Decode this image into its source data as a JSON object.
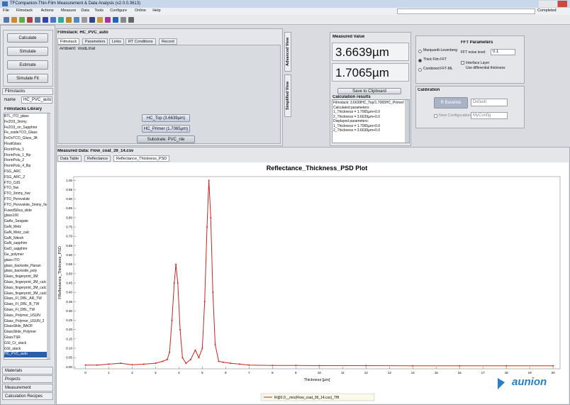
{
  "window": {
    "title": "TFCompanion-Thin-Film Measurement & Data Analysis (v2.0.0.3613)",
    "status": "Completed"
  },
  "menu": [
    "File",
    "Filmstack",
    "Actions",
    "Measure",
    "Data",
    "Tools",
    "Configure",
    "Online",
    "Help"
  ],
  "left": {
    "buttons": [
      "Calculate",
      "Simulate",
      "Estimate",
      "Simulate Fit"
    ],
    "tab": "Filmstacks",
    "name_label": "Name",
    "name_value": "HC_PVC_auto",
    "library_title": "Filmstacks Library",
    "library": [
      "BTL_ITO_glass",
      "Fe2O3_3mmy",
      "Fe2O3_on_Sapphire",
      "Fe_oxideTCO_Glass",
      "FeOxTCO_Glass_3ft",
      "FloatGlass",
      "FlorinPolu_1",
      "FlorinPolu_1_flip",
      "FlorinPolu_2",
      "FlorinPolu_4_flip",
      "FSG_ARC",
      "FSG_ARC_2",
      "FTO_CdS",
      "FTO_fsw",
      "FTO_3mmy_fsw",
      "FTO_Perovskite",
      "FTO_Perovskite_3mmy_fsw",
      "FusedSilica_slide",
      "glass100",
      "GaAs_Seagate",
      "GaN_Metz",
      "GaN_Metz_calc",
      "GaN_Nitesh",
      "GaN_sapphire",
      "GaO_sapphire",
      "Ge_polymer",
      "glass-ITO",
      "glass_backside_Hanan",
      "glass_backside_poly",
      "Glass_fingerprint_3M",
      "Glass_fingerprint_3M_calc",
      "Glass_fingerprint_3M_calc1",
      "Glass_fingerprint_3M_calc3",
      "Glass_FI_DBL_AR_TW",
      "Glass_FI_DBL_B_TW",
      "Glass_FI_DBL_TW",
      "Glass_Polymer_USUN",
      "Glass_Polymer_USUN_2",
      "GlassSlide_BAOF",
      "GlassSlide_Polymer",
      "GlassTSR",
      "GSI_Cr_stack",
      "GSI_stack",
      "HC_PVC_auto"
    ],
    "bottom_tabs": [
      "Materials",
      "Projects",
      "Measurement",
      "Calculation Recipes"
    ]
  },
  "filmstack": {
    "title": "Filmstack: HC_PVC_auto",
    "tabs": [
      "Filmstack",
      "Parameters",
      "Links",
      "RT Conditions",
      "Record"
    ],
    "ambient": "Ambient: VoidLmat",
    "layers": [
      "HC_Top (3.6639µm)",
      "HC_Primer (1.7065µm)",
      "Substrate: PVC_nle"
    ],
    "side_tabs": [
      "Advanced View",
      "Simplified View"
    ]
  },
  "measured": {
    "title": "Measured Value",
    "values": [
      "3.6639µm",
      "1.7065µm"
    ],
    "clipboard": "Save to Clipboard",
    "results_title": "Calculation results",
    "results": [
      "Filmstack: 3.6639HC_Top/1.7065HC_Primer/PVC_nle",
      "Calculated parameters:",
      "1_Thickness = 1.7065µm+0.0",
      "2_Thickness = 3.6639µm+0.0",
      "Displayed parameters:",
      "1_Thickness = 1.7065µm+0.0",
      "2_Thickness = 3.6639µm+0.0"
    ]
  },
  "fft": {
    "options": [
      "Marquardt-Levenberg",
      "Thick Film FFT",
      "Combined FFT-ML"
    ],
    "title": "FFT Parameters",
    "noise_label": "FFT noise level:",
    "noise_value": "0.1",
    "checks": [
      "Interface Layer",
      "Use differential thickness"
    ]
  },
  "calibration": {
    "title": "Calibration",
    "button": "R Baseline",
    "select": "Default",
    "check": "New Configuration",
    "input": "MyConfig"
  },
  "data_panel": {
    "title": "Measured Data: Flow_coat_39_14.csv",
    "tabs": [
      "Data Table",
      "Reflectance",
      "Reflectance_Thickness_PSD"
    ]
  },
  "chart_data": {
    "type": "line",
    "title": "Reflectance_Thickness_PSD Plot",
    "x_label": "Thickness [µm]",
    "y_label": "FReflectance_Thickness_PSD",
    "x": [
      0,
      0.5,
      1,
      1.5,
      2,
      2.5,
      3,
      3.3,
      3.5,
      3.6,
      3.7,
      3.8,
      3.87,
      3.95,
      4.05,
      4.15,
      4.3,
      4.5,
      4.7,
      4.85,
      5.0,
      5.1,
      5.2,
      5.28,
      5.36,
      5.45,
      5.55,
      5.7,
      5.9,
      6.2,
      6.6,
      7,
      8,
      9,
      10,
      12,
      14,
      16,
      18,
      20
    ],
    "series": [
      {
        "name": "R@0.0__mrs(Flow_coat_39_14.csv)_Tfft",
        "color": "#cc2222",
        "values": [
          0.01,
          0.01,
          0.015,
          0.02,
          0.012,
          0.015,
          0.02,
          0.03,
          0.04,
          0.08,
          0.25,
          0.45,
          0.55,
          0.45,
          0.2,
          0.05,
          0.02,
          0.04,
          0.09,
          0.05,
          0.1,
          0.35,
          0.75,
          1.0,
          0.8,
          0.4,
          0.12,
          0.03,
          0.025,
          0.02,
          0.015,
          0.01,
          0.008,
          0.008,
          0.007,
          0.007,
          0.006,
          0.006,
          0.006,
          0.006
        ]
      }
    ],
    "xlim": [
      -0.5,
      20.3
    ],
    "ylim": [
      -0.01,
      1.02
    ],
    "xticks": [
      0,
      1,
      2,
      3,
      4,
      5,
      6,
      7,
      8,
      9,
      10,
      11,
      12,
      13,
      14,
      15,
      16,
      17,
      18,
      19,
      20
    ],
    "yticks": [
      {
        "value": 0,
        "label": "0.00"
      },
      {
        "value": 0.05,
        "label": "0.05"
      },
      {
        "value": 0.1,
        "label": "0.10"
      },
      {
        "value": 0.15,
        "label": "0.15"
      },
      {
        "value": 0.2,
        "label": "0.20"
      },
      {
        "value": 0.25,
        "label": "0.25"
      },
      {
        "value": 0.3,
        "label": "0.30"
      },
      {
        "value": 0.35,
        "label": "0.35"
      },
      {
        "value": 0.4,
        "label": "0.40"
      },
      {
        "value": 0.45,
        "label": "0.45"
      },
      {
        "value": 0.5,
        "label": "0.50"
      },
      {
        "value": 0.55,
        "label": "0.55"
      },
      {
        "value": 0.6,
        "label": "0.60"
      },
      {
        "value": 0.65,
        "label": "0.65"
      },
      {
        "value": 0.7,
        "label": "0.70"
      },
      {
        "value": 0.75,
        "label": "0.75"
      },
      {
        "value": 0.8,
        "label": "0.80"
      },
      {
        "value": 0.85,
        "label": "0.85"
      },
      {
        "value": 0.9,
        "label": "0.90"
      },
      {
        "value": 0.95,
        "label": "0.95"
      },
      {
        "value": 1.0,
        "label": "1.00"
      }
    ],
    "grid": false,
    "legend": "bottom"
  },
  "watermark": "aunion"
}
